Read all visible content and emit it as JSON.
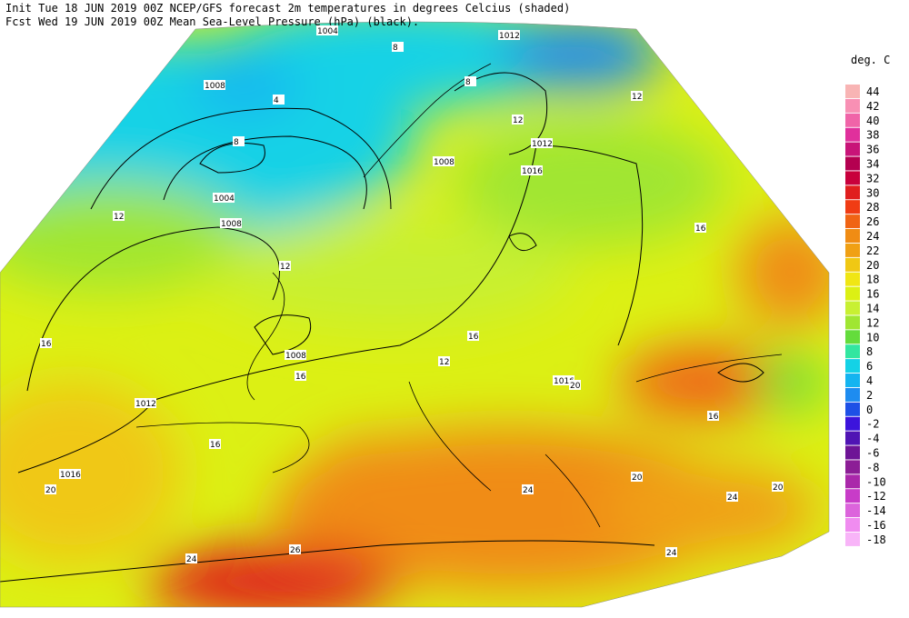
{
  "header": {
    "line1": "Init  Tue 18 JUN 2019 00Z  NCEP/GFS forecast 2m temperatures in degrees Celcius (shaded)",
    "line2": "Fcst Wed 19 JUN 2019 00Z  Mean Sea-Level Pressure (hPa) (black)."
  },
  "legend": {
    "title": "deg. C",
    "levels": [
      44,
      42,
      40,
      38,
      36,
      34,
      32,
      30,
      28,
      26,
      24,
      22,
      20,
      18,
      16,
      14,
      12,
      10,
      8,
      6,
      4,
      2,
      0,
      -2,
      -4,
      -6,
      -8,
      -10,
      -12,
      -14,
      -16,
      -18
    ],
    "colors": [
      "#f8b4b4",
      "#f890b4",
      "#f064a8",
      "#e0309c",
      "#c81478",
      "#b40050",
      "#c8003c",
      "#e01e1e",
      "#f03c14",
      "#f06414",
      "#f08c14",
      "#f0a014",
      "#f0c814",
      "#f0e614",
      "#dcf014",
      "#c8f032",
      "#a0e632",
      "#64dc3c",
      "#32e6a0",
      "#14d2e6",
      "#14b4f0",
      "#1e8cf0",
      "#1e50e6",
      "#3c14dc",
      "#5014b4",
      "#6e1496",
      "#8c1e96",
      "#aa28aa",
      "#c83cc8",
      "#dc64dc",
      "#f08cf0",
      "#f8b4f8"
    ]
  },
  "map": {
    "isobar_labels": [
      "1008",
      "1004",
      "1008",
      "1004",
      "1008",
      "1012",
      "1016",
      "1012",
      "1008",
      "1012",
      "1016",
      "1016"
    ],
    "temperature_labels": [
      "8",
      "4",
      "8",
      "12",
      "12",
      "12",
      "16",
      "16",
      "16",
      "16",
      "20",
      "20",
      "24",
      "24",
      "24",
      "26",
      "20",
      "24",
      "16",
      "12",
      "8",
      "12",
      "16",
      "20"
    ]
  }
}
